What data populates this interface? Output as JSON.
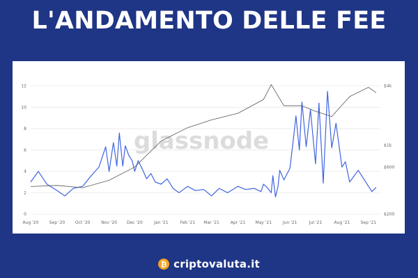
{
  "header": {
    "title": "L'ANDAMENTO DELLE FEE"
  },
  "brand": {
    "text": "criptovaluta.it",
    "icon": "bitcoin-coin-icon",
    "icon_glyph": "₿",
    "color": "#f7a21b"
  },
  "watermark": {
    "text": "glassnode"
  },
  "colors": {
    "background": "#1f3586",
    "fee_line": "#3f64e0",
    "price_line": "#555555",
    "grid": "#e6e6e6"
  },
  "chart_data": {
    "type": "line",
    "title": "",
    "xlabel": "",
    "ylabel": "",
    "x_ticks": [
      "Aug '20",
      "Sep '20",
      "Oct '20",
      "Nov '20",
      "Dec '20",
      "Jan '21",
      "Feb '21",
      "Mar '21",
      "Apr '21",
      "May '21",
      "Jun '21",
      "Jul '21",
      "Aug '21",
      "Sep '21"
    ],
    "y_left_ticks": [
      "0",
      "2",
      "4",
      "6",
      "8",
      "10",
      "12"
    ],
    "ylim_left": [
      0,
      12.5
    ],
    "y_right_ticks": [
      "$200",
      "$600",
      "$1k",
      "$4k"
    ],
    "ylim_right": [
      200,
      4500
    ],
    "right_scale": "log",
    "grid": true,
    "series": [
      {
        "axis": "left",
        "color": "#3f64e0",
        "x": [
          "2020-08-01",
          "2020-08-10",
          "2020-08-20",
          "2020-09-01",
          "2020-09-10",
          "2020-09-20",
          "2020-10-01",
          "2020-10-10",
          "2020-10-20",
          "2020-10-28",
          "2020-11-01",
          "2020-11-06",
          "2020-11-10",
          "2020-11-13",
          "2020-11-17",
          "2020-11-20",
          "2020-11-24",
          "2020-11-28",
          "2020-12-01",
          "2020-12-05",
          "2020-12-10",
          "2020-12-15",
          "2020-12-20",
          "2020-12-25",
          "2021-01-01",
          "2021-01-08",
          "2021-01-15",
          "2021-01-22",
          "2021-02-01",
          "2021-02-10",
          "2021-02-20",
          "2021-03-01",
          "2021-03-10",
          "2021-03-20",
          "2021-04-01",
          "2021-04-10",
          "2021-04-20",
          "2021-04-28",
          "2021-05-01",
          "2021-05-05",
          "2021-05-10",
          "2021-05-12",
          "2021-05-15",
          "2021-05-18",
          "2021-05-20",
          "2021-05-25",
          "2021-06-01",
          "2021-06-05",
          "2021-06-08",
          "2021-06-12",
          "2021-06-15",
          "2021-06-20",
          "2021-06-25",
          "2021-07-01",
          "2021-07-05",
          "2021-07-10",
          "2021-07-15",
          "2021-07-20",
          "2021-07-25",
          "2021-08-01",
          "2021-08-05",
          "2021-08-10",
          "2021-08-20",
          "2021-09-01",
          "2021-09-05",
          "2021-09-10"
        ],
        "values": [
          3.0,
          4.0,
          2.8,
          2.2,
          1.7,
          2.4,
          2.6,
          3.5,
          4.4,
          6.3,
          4.0,
          6.7,
          4.5,
          7.6,
          4.5,
          6.4,
          5.5,
          5.0,
          4.0,
          5.0,
          4.2,
          3.3,
          3.8,
          3.0,
          2.8,
          3.3,
          2.4,
          2.0,
          2.6,
          2.2,
          2.3,
          1.7,
          2.4,
          2.0,
          2.6,
          2.3,
          2.4,
          2.1,
          2.8,
          2.5,
          2.0,
          3.6,
          1.6,
          2.6,
          4.1,
          3.2,
          4.3,
          7.0,
          9.2,
          6.0,
          10.5,
          6.3,
          9.8,
          4.7,
          10.4,
          2.9,
          11.5,
          6.2,
          8.5,
          4.4,
          4.9,
          3.0,
          4.1,
          2.6,
          2.1,
          2.5
        ]
      },
      {
        "axis": "right",
        "color": "#555555",
        "x": [
          "2020-08-01",
          "2020-09-01",
          "2020-10-01",
          "2020-11-01",
          "2020-12-01",
          "2021-01-01",
          "2021-02-01",
          "2021-03-01",
          "2021-04-01",
          "2021-05-01",
          "2021-05-10",
          "2021-05-25",
          "2021-06-15",
          "2021-07-01",
          "2021-07-20",
          "2021-08-10",
          "2021-09-01",
          "2021-09-10"
        ],
        "values": [
          380,
          390,
          370,
          440,
          600,
          1100,
          1500,
          1800,
          2100,
          2900,
          4100,
          2500,
          2500,
          2200,
          1950,
          3100,
          3850,
          3400
        ]
      }
    ]
  }
}
